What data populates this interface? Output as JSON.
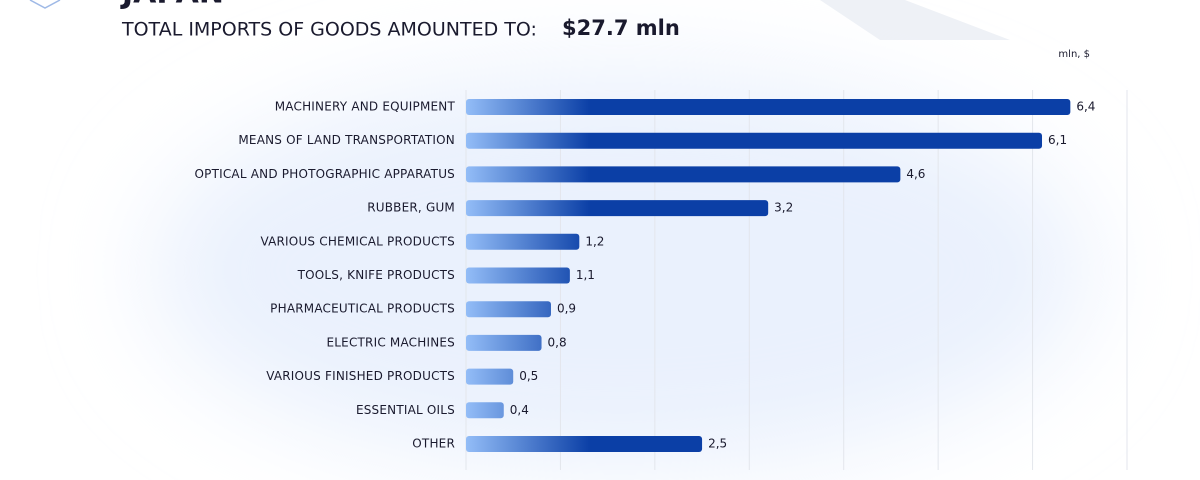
{
  "chart_data": {
    "type": "bar",
    "orientation": "horizontal",
    "country": "JAPAN",
    "title": "TOTAL IMPORTS OF GOODS AMOUNTED TO:",
    "title_value": "$27.7 mln",
    "unit_label": "mln, $",
    "categories": [
      "MACHINERY AND EQUIPMENT",
      "MEANS OF LAND TRANSPORTATION",
      "OPTICAL AND PHOTOGRAPHIC APPARATUS",
      "RUBBER, GUM",
      "VARIOUS CHEMICAL PRODUCTS",
      "TOOLS, KNIFE PRODUCTS",
      "PHARMACEUTICAL PRODUCTS",
      "ELECTRIC MACHINES",
      "VARIOUS FINISHED PRODUCTS",
      "ESSENTIAL OILS",
      "OTHER"
    ],
    "values": [
      6.4,
      6.1,
      4.6,
      3.2,
      1.2,
      1.1,
      0.9,
      0.8,
      0.5,
      0.4,
      2.5
    ],
    "value_labels": [
      "6,4",
      "6,1",
      "4,6",
      "3,2",
      "1,2",
      "1,1",
      "0,9",
      "0,8",
      "0,5",
      "0,4",
      "2,5"
    ],
    "color": "#0b3fa6",
    "color_light": "#93bdf7",
    "xlim": [
      0,
      7
    ],
    "xticks": [
      0,
      1,
      2,
      3,
      4,
      5,
      6,
      7
    ],
    "grid": true
  }
}
